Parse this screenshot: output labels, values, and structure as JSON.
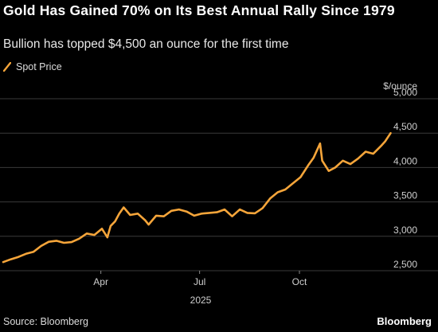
{
  "title": "Gold Has Gained 70% on Its Best Annual Rally Since 1979",
  "subtitle": "Bullion has topped $4,500 an ounce for the first time",
  "source": "Source: Bloomberg",
  "brand": "Bloomberg",
  "colors": {
    "line": "#f5a53a",
    "grid": "#3a3a3a",
    "background": "#000000"
  },
  "chart_data": {
    "type": "line",
    "series": [
      {
        "name": "Spot Price",
        "x": [
          "2025-01-01",
          "2025-01-08",
          "2025-01-15",
          "2025-01-22",
          "2025-01-29",
          "2025-02-05",
          "2025-02-12",
          "2025-02-19",
          "2025-02-26",
          "2025-03-05",
          "2025-03-12",
          "2025-03-19",
          "2025-03-26",
          "2025-04-02",
          "2025-04-07",
          "2025-04-10",
          "2025-04-14",
          "2025-04-18",
          "2025-04-22",
          "2025-04-28",
          "2025-05-05",
          "2025-05-12",
          "2025-05-15",
          "2025-05-22",
          "2025-05-29",
          "2025-06-05",
          "2025-06-12",
          "2025-06-19",
          "2025-06-26",
          "2025-07-03",
          "2025-07-10",
          "2025-07-17",
          "2025-07-24",
          "2025-07-31",
          "2025-08-07",
          "2025-08-14",
          "2025-08-21",
          "2025-08-28",
          "2025-09-04",
          "2025-09-11",
          "2025-09-18",
          "2025-09-25",
          "2025-10-02",
          "2025-10-09",
          "2025-10-14",
          "2025-10-20",
          "2025-10-22",
          "2025-10-28",
          "2025-11-03",
          "2025-11-10",
          "2025-11-17",
          "2025-11-24",
          "2025-12-01",
          "2025-12-08",
          "2025-12-15",
          "2025-12-19",
          "2025-12-24"
        ],
        "values": [
          2625,
          2665,
          2700,
          2745,
          2775,
          2860,
          2920,
          2935,
          2905,
          2915,
          2965,
          3040,
          3020,
          3110,
          2985,
          3150,
          3215,
          3330,
          3420,
          3310,
          3330,
          3230,
          3170,
          3300,
          3290,
          3370,
          3390,
          3360,
          3300,
          3330,
          3340,
          3350,
          3390,
          3290,
          3390,
          3340,
          3335,
          3410,
          3550,
          3640,
          3680,
          3770,
          3860,
          4030,
          4140,
          4350,
          4100,
          3950,
          4000,
          4100,
          4050,
          4130,
          4230,
          4200,
          4310,
          4380,
          4500
        ]
      }
    ],
    "y_unit": "$/ounce",
    "ylim": [
      2500,
      5000
    ],
    "yticks": [
      2500,
      3000,
      3500,
      4000,
      4500,
      5000
    ],
    "ytick_labels": [
      "2,500",
      "3,000",
      "3,500",
      "4,000",
      "4,500",
      "5,000"
    ],
    "xlim": [
      "2025-01-01",
      "2025-12-31"
    ],
    "xticks": [
      "2025-04-01",
      "2025-07-01",
      "2025-10-01"
    ],
    "xtick_labels": [
      "Apr",
      "Jul",
      "Oct"
    ],
    "x_year_label": "2025",
    "grid": true,
    "legend": "top-left"
  }
}
